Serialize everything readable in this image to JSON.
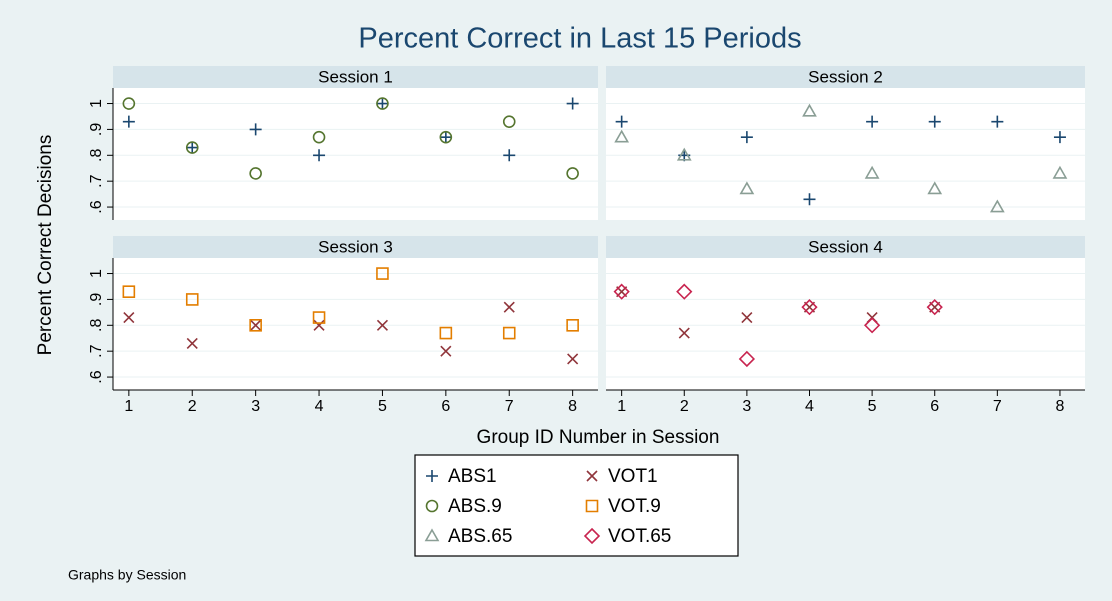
{
  "title": "Percent Correct in Last 15 Periods",
  "xlabel": "Group ID Number in Session",
  "ylabel": "Percent Correct Decisions",
  "note": "Graphs by Session",
  "chart_data": [
    {
      "type": "scatter",
      "title": "Session 1",
      "x": [
        1,
        2,
        3,
        4,
        5,
        6,
        7,
        8
      ],
      "series": [
        {
          "name": "ABS1",
          "color": "#1a476f",
          "marker": "plus",
          "values": [
            0.93,
            0.83,
            0.9,
            0.8,
            1,
            0.87,
            0.8,
            1
          ]
        },
        {
          "name": "ABS.9",
          "color": "#55752f",
          "marker": "circle",
          "values": [
            1,
            0.83,
            0.73,
            0.87,
            1,
            0.87,
            0.93,
            0.73
          ]
        }
      ],
      "xlim": [
        0.75,
        8.4
      ],
      "ylim": [
        0.55,
        1.06
      ],
      "xticks": [
        1,
        2,
        3,
        4,
        5,
        6,
        7,
        8
      ],
      "yticks": [
        {
          "value": 0.6,
          "label": ".6"
        },
        {
          "value": 0.7,
          "label": ".7"
        },
        {
          "value": 0.8,
          "label": ".8"
        },
        {
          "value": 0.9,
          "label": ".9"
        },
        1
      ]
    },
    {
      "type": "scatter",
      "title": "Session 2",
      "x": [
        1,
        2,
        3,
        4,
        5,
        6,
        7,
        8
      ],
      "series": [
        {
          "name": "ABS1",
          "color": "#1a476f",
          "marker": "plus",
          "values": [
            0.93,
            0.8,
            0.87,
            0.63,
            0.93,
            0.93,
            0.93,
            0.87
          ]
        },
        {
          "name": "ABS.65",
          "color": "#8a9e95",
          "marker": "triangle",
          "values": [
            0.87,
            0.8,
            0.67,
            0.97,
            0.73,
            0.67,
            0.6,
            0.73
          ]
        }
      ],
      "xlim": [
        0.75,
        8.4
      ],
      "ylim": [
        0.55,
        1.06
      ],
      "xticks": [
        1,
        2,
        3,
        4,
        5,
        6,
        7,
        8
      ],
      "yticks": [
        {
          "value": 0.6,
          "label": ".6"
        },
        {
          "value": 0.7,
          "label": ".7"
        },
        {
          "value": 0.8,
          "label": ".8"
        },
        {
          "value": 0.9,
          "label": ".9"
        },
        1
      ]
    },
    {
      "type": "scatter",
      "title": "Session 3",
      "x": [
        1,
        2,
        3,
        4,
        5,
        6,
        7,
        8
      ],
      "series": [
        {
          "name": "VOT1",
          "color": "#90353b",
          "marker": "x",
          "values": [
            0.83,
            0.73,
            0.8,
            0.8,
            0.8,
            0.7,
            0.87,
            0.67
          ]
        },
        {
          "name": "VOT.9",
          "color": "#e37e00",
          "marker": "square",
          "values": [
            0.93,
            0.9,
            0.8,
            0.83,
            1,
            0.77,
            0.77,
            0.8
          ]
        }
      ],
      "xlim": [
        0.75,
        8.4
      ],
      "ylim": [
        0.55,
        1.06
      ],
      "xticks": [
        1,
        2,
        3,
        4,
        5,
        6,
        7,
        8
      ],
      "yticks": [
        {
          "value": 0.6,
          "label": ".6"
        },
        {
          "value": 0.7,
          "label": ".7"
        },
        {
          "value": 0.8,
          "label": ".8"
        },
        {
          "value": 0.9,
          "label": ".9"
        },
        1
      ]
    },
    {
      "type": "scatter",
      "title": "Session 4",
      "x": [
        1,
        2,
        3,
        4,
        5,
        6,
        7,
        8
      ],
      "series": [
        {
          "name": "VOT1",
          "color": "#90353b",
          "marker": "x",
          "values": [
            0.93,
            0.77,
            0.83,
            0.87,
            0.83,
            0.87,
            null,
            null
          ]
        },
        {
          "name": "VOT.65",
          "color": "#c8244f",
          "marker": "diamond",
          "values": [
            0.93,
            0.93,
            0.67,
            0.87,
            0.8,
            0.87,
            null,
            null
          ]
        }
      ],
      "xlim": [
        0.75,
        8.4
      ],
      "ylim": [
        0.55,
        1.06
      ],
      "xticks": [
        1,
        2,
        3,
        4,
        5,
        6,
        7,
        8
      ],
      "yticks": [
        {
          "value": 0.6,
          "label": ".6"
        },
        {
          "value": 0.7,
          "label": ".7"
        },
        {
          "value": 0.8,
          "label": ".8"
        },
        {
          "value": 0.9,
          "label": ".9"
        },
        1
      ]
    }
  ]
}
